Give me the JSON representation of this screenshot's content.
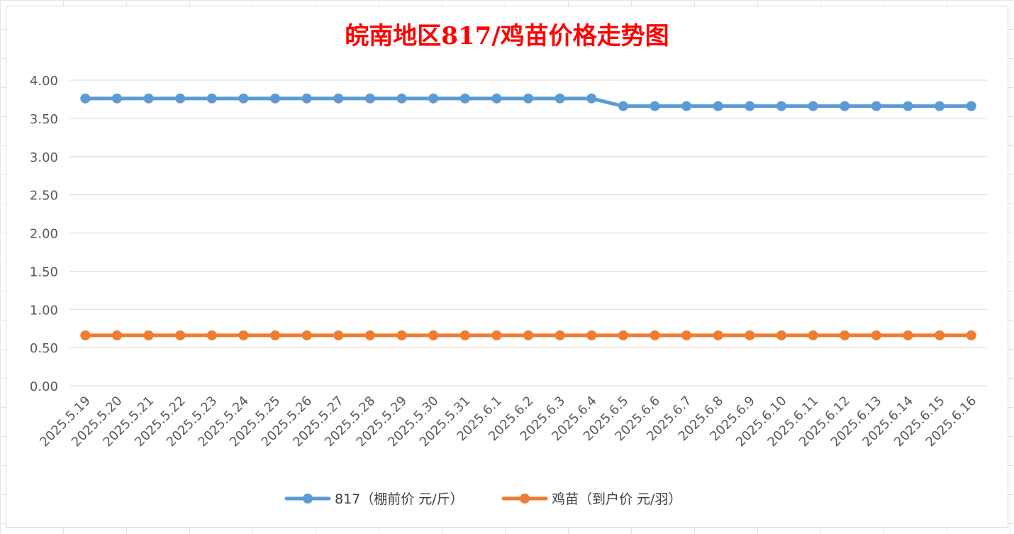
{
  "chart_data": {
    "type": "line",
    "title": "皖南地区817/鸡苗价格走势图",
    "title_color": "#FF0000",
    "xlabel": "",
    "ylabel": "",
    "ylim": [
      0,
      4
    ],
    "y_ticks": [
      "0.00",
      "0.50",
      "1.00",
      "1.50",
      "2.00",
      "2.50",
      "3.00",
      "3.50",
      "4.00"
    ],
    "grid": true,
    "legend_position": "bottom",
    "categories": [
      "2025.5.19",
      "2025.5.20",
      "2025.5.21",
      "2025.5.22",
      "2025.5.23",
      "2025.5.24",
      "2025.5.25",
      "2025.5.26",
      "2025.5.27",
      "2025.5.28",
      "2025.5.29",
      "2025.5.30",
      "2025.5.31",
      "2025.6.1",
      "2025.6.2",
      "2025.6.3",
      "2025.6.4",
      "2025.6.5",
      "2025.6.6",
      "2025.6.7",
      "2025.6.8",
      "2025.6.9",
      "2025.6.10",
      "2025.6.11",
      "2025.6.12",
      "2025.6.13",
      "2025.6.14",
      "2025.6.15",
      "2025.6.16"
    ],
    "series": [
      {
        "name": "817（棚前价 元/斤）",
        "color": "#5B9BD5",
        "values": [
          3.76,
          3.76,
          3.76,
          3.76,
          3.76,
          3.76,
          3.76,
          3.76,
          3.76,
          3.76,
          3.76,
          3.76,
          3.76,
          3.76,
          3.76,
          3.76,
          3.76,
          3.66,
          3.66,
          3.66,
          3.66,
          3.66,
          3.66,
          3.66,
          3.66,
          3.66,
          3.66,
          3.66,
          3.66
        ]
      },
      {
        "name": "鸡苗（到户价 元/羽）",
        "color": "#ED7D31",
        "values": [
          0.66,
          0.66,
          0.66,
          0.66,
          0.66,
          0.66,
          0.66,
          0.66,
          0.66,
          0.66,
          0.66,
          0.66,
          0.66,
          0.66,
          0.66,
          0.66,
          0.66,
          0.66,
          0.66,
          0.66,
          0.66,
          0.66,
          0.66,
          0.66,
          0.66,
          0.66,
          0.66,
          0.66,
          0.66
        ]
      }
    ]
  }
}
